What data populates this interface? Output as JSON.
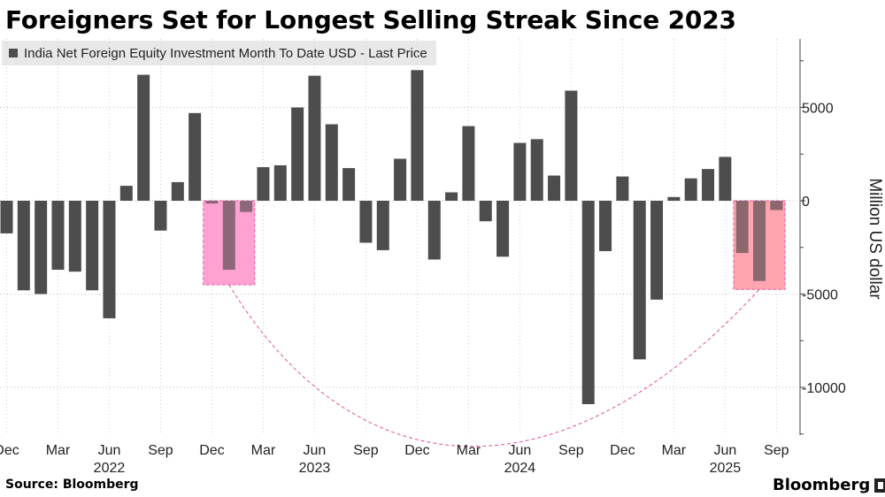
{
  "title": "Foreigners Set for Longest Selling Streak Since 2023",
  "legend": {
    "label": "India Net Foreign Equity Investment Month To Date USD - Last Price"
  },
  "footer": {
    "source": "Source: Bloomberg",
    "brand": "Bloomberg"
  },
  "chart_data": {
    "type": "bar",
    "title": "Foreigners Set for Longest Selling Streak Since 2023",
    "xlabel": "",
    "ylabel": "Million US dollar",
    "ylim": [
      -12500,
      8500
    ],
    "yticks": [
      5000,
      0,
      -5000,
      -10000
    ],
    "ytick_labels": [
      "5000",
      "0",
      "-5000",
      "-10000"
    ],
    "grid": true,
    "legend_position": "top-left",
    "series": [
      {
        "name": "India Net Foreign Equity Investment Month To Date USD - Last Price",
        "color": "#4d4d4d",
        "categories": [
          "Dec 2021",
          "Jan 2022",
          "Feb 2022",
          "Mar 2022",
          "Apr 2022",
          "May 2022",
          "Jun 2022",
          "Jul 2022",
          "Aug 2022",
          "Sep 2022",
          "Oct 2022",
          "Nov 2022",
          "Dec 2022",
          "Jan 2023",
          "Feb 2023",
          "Mar 2023",
          "Apr 2023",
          "May 2023",
          "Jun 2023",
          "Jul 2023",
          "Aug 2023",
          "Sep 2023",
          "Oct 2023",
          "Nov 2023",
          "Dec 2023",
          "Jan 2024",
          "Feb 2024",
          "Mar 2024",
          "Apr 2024",
          "May 2024",
          "Jun 2024",
          "Jul 2024",
          "Aug 2024",
          "Sep 2024",
          "Oct 2024",
          "Nov 2024",
          "Dec 2024",
          "Jan 2025",
          "Feb 2025",
          "Mar 2025",
          "Apr 2025",
          "May 2025",
          "Jun 2025",
          "Jul 2025",
          "Aug 2025",
          "Sep 2025"
        ],
        "values": [
          -1750,
          -4800,
          -5000,
          -3700,
          -3800,
          -4800,
          -6300,
          800,
          6750,
          -1600,
          1000,
          4700,
          -150,
          -3700,
          -600,
          1800,
          1900,
          5000,
          6700,
          4100,
          1750,
          -2250,
          -2650,
          2250,
          7000,
          -3150,
          450,
          4000,
          -1100,
          -3000,
          3100,
          3300,
          1350,
          5900,
          -10900,
          -2700,
          1300,
          -8500,
          -5300,
          200,
          1200,
          1700,
          2350,
          -2800,
          -4300,
          -500
        ]
      }
    ],
    "x_tick_labels": [
      {
        "label": "Dec",
        "month": "Dec 2021"
      },
      {
        "label": "Mar",
        "month": "Mar 2022"
      },
      {
        "label": "Jun",
        "month": "Jun 2022"
      },
      {
        "label": "Sep",
        "month": "Sep 2022"
      },
      {
        "label": "Dec",
        "month": "Dec 2022"
      },
      {
        "label": "Mar",
        "month": "Mar 2023"
      },
      {
        "label": "Jun",
        "month": "Jun 2023"
      },
      {
        "label": "Sep",
        "month": "Sep 2023"
      },
      {
        "label": "Dec",
        "month": "Dec 2023"
      },
      {
        "label": "Mar",
        "month": "Mar 2024"
      },
      {
        "label": "Jun",
        "month": "Jun 2024"
      },
      {
        "label": "Sep",
        "month": "Sep 2024"
      },
      {
        "label": "Dec",
        "month": "Dec 2024"
      },
      {
        "label": "Mar",
        "month": "Mar 2025"
      },
      {
        "label": "Jun",
        "month": "Jun 2025"
      },
      {
        "label": "Sep",
        "month": "Sep 2025"
      }
    ],
    "year_labels": [
      {
        "label": "2022",
        "month": "Jun 2022"
      },
      {
        "label": "2023",
        "month": "Jun 2023"
      },
      {
        "label": "2024",
        "month": "Jun 2024"
      },
      {
        "label": "2025",
        "month": "Jun 2025"
      }
    ],
    "highlights": [
      {
        "name": "highlight-2023-streak",
        "start": "Dec 2022",
        "end": "Feb 2023",
        "min_value": -4500,
        "color": "#ff99cc"
      },
      {
        "name": "highlight-2025-streak",
        "start": "Jul 2025",
        "end": "Sep 2025",
        "min_value": -4750,
        "color": "#ff9aa8"
      }
    ],
    "annotations": [
      {
        "type": "dashed-arc",
        "from": "highlight-2023-streak",
        "to": "highlight-2025-streak",
        "color": "#e0529c"
      }
    ]
  }
}
